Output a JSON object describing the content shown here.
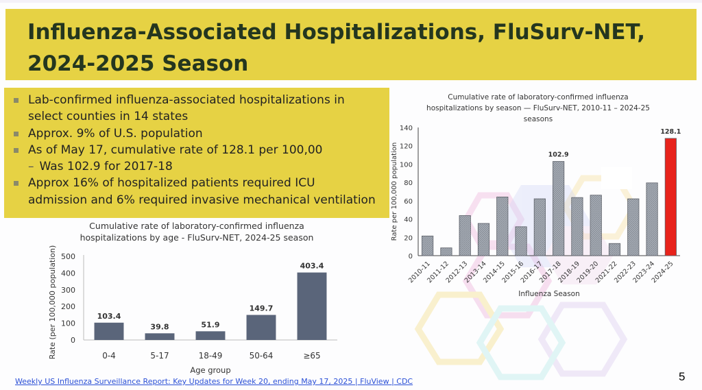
{
  "slide": {
    "title": "Influenza-Associated Hospitalizations, FluSurv-NET, 2024-2025 Season",
    "page_number": "5",
    "source_link": "Weekly US Influenza Surveillance Report: Key Updates for Week 20, ending May 17, 2025 | FluView | CDC",
    "colors": {
      "title_band": "#e6d244",
      "title_text": "#24361f",
      "age_bars": "#5a657a",
      "season_bars": "#a9afb8",
      "highlight_bar": "#e8231c"
    }
  },
  "bullets": [
    {
      "level": 1,
      "text": "Lab-confirmed influenza-associated hospitalizations in"
    },
    {
      "level": 1,
      "cont": true,
      "text": "select counties in 14 states"
    },
    {
      "level": 1,
      "text": "Approx. 9% of  U.S. population"
    },
    {
      "level": 1,
      "text": "As of May 17, cumulative rate of 128.1 per 100,00"
    },
    {
      "level": 2,
      "text": "Was 102.9 for 2017-18"
    },
    {
      "level": 1,
      "text": "Approx 16% of hospitalized patients required ICU"
    },
    {
      "level": 1,
      "cont": true,
      "text": "admission and 6% required invasive mechanical ventilation"
    }
  ],
  "chart_data": [
    {
      "id": "age",
      "type": "bar",
      "title_lines": [
        "Cumulative rate of laboratory-confirmed influenza",
        "hospitalizations by age - FluSurv-NET, 2024-25 season"
      ],
      "xlabel": "Age group",
      "ylabel": "Rate (per 100,000 population)",
      "categories": [
        "0-4",
        "5-17",
        "18-49",
        "50-64",
        "≥65"
      ],
      "values": [
        103.4,
        39.8,
        51.9,
        149.7,
        403.4
      ],
      "data_labels": [
        "103.4",
        "39.8",
        "51.9",
        "149.7",
        "403.4"
      ],
      "ylim": [
        0,
        500
      ],
      "yticks": [
        0,
        100,
        200,
        300,
        400,
        500
      ],
      "grid": false,
      "bar_color": "#5a657a"
    },
    {
      "id": "season",
      "type": "bar",
      "title_lines": [
        "Cumulative rate of laboratory-confirmed influenza",
        "hospitalizations by season — FluSurv-NET,  2010-11 –  2024-25",
        "seasons"
      ],
      "xlabel": "Influenza Season",
      "ylabel": "Rate per 100,000 population",
      "categories": [
        "2010-11",
        "2011-12",
        "2012-13",
        "2013-14",
        "2014-15",
        "2015-16",
        "2016-17",
        "2017-18",
        "2018-19",
        "2019-20",
        "2021-22",
        "2022-23",
        "2023-24",
        "2024-25"
      ],
      "values": [
        21.5,
        8.5,
        43.8,
        35.2,
        64.1,
        31.6,
        62.1,
        102.9,
        63.5,
        66.1,
        13.3,
        62.1,
        79.5,
        128.1
      ],
      "data_labels": [
        "",
        "",
        "",
        "",
        "",
        "",
        "",
        "102.9",
        "",
        "",
        "",
        "",
        "",
        "128.1"
      ],
      "highlight_index": 13,
      "ylim": [
        0,
        140
      ],
      "yticks": [
        0,
        20,
        40,
        60,
        80,
        100,
        120,
        140
      ],
      "grid": false,
      "bar_color": "#a9afb8",
      "highlight_color": "#e8231c"
    }
  ]
}
